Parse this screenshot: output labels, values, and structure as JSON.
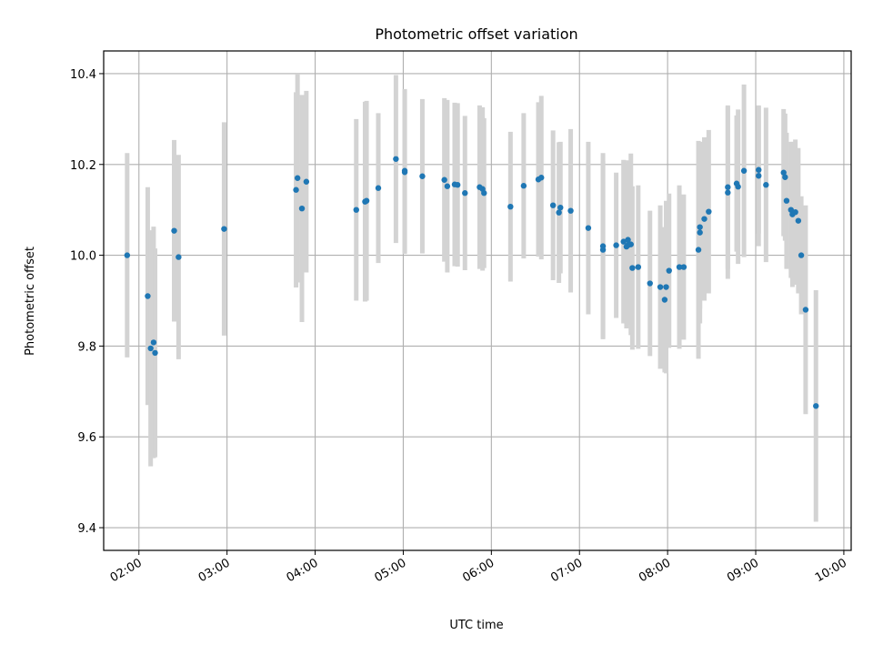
{
  "chart_data": {
    "type": "scatter",
    "title": "Photometric offset variation",
    "xlabel": "UTC time",
    "ylabel": "Photometric offset",
    "x_type": "time",
    "xlim": [
      "01:36",
      "10:05"
    ],
    "ylim": [
      9.35,
      10.45
    ],
    "grid": true,
    "x_ticks": [
      "02:00",
      "03:00",
      "04:00",
      "05:00",
      "06:00",
      "07:00",
      "08:00",
      "09:00",
      "10:00"
    ],
    "y_ticks": [
      9.4,
      9.6,
      9.8,
      10.0,
      10.2,
      10.4
    ],
    "y_tick_labels": [
      "9.4",
      "9.6",
      "9.8",
      "10.0",
      "10.2",
      "10.4"
    ],
    "colors": {
      "points": "#1f77b4",
      "error_bars": "#d3d3d3",
      "grid": "#b0b0b0"
    },
    "series": [
      {
        "x": [
          "01:52",
          "02:06",
          "02:08",
          "02:10",
          "02:11",
          "02:24",
          "02:27",
          "02:58",
          "03:47",
          "03:48",
          "03:51",
          "03:54",
          "04:28",
          "04:34",
          "04:35",
          "04:43",
          "04:55",
          "05:01",
          "05:01",
          "05:13",
          "05:28",
          "05:30",
          "05:35",
          "05:37",
          "05:42",
          "05:52",
          "05:54",
          "05:55",
          "06:13",
          "06:22",
          "06:32",
          "06:34",
          "06:42",
          "06:46",
          "06:47",
          "06:54",
          "07:06",
          "07:16",
          "07:16",
          "07:25",
          "07:30",
          "07:32",
          "07:33",
          "07:33",
          "07:35",
          "07:36",
          "07:40",
          "07:48",
          "07:55",
          "07:58",
          "07:59",
          "08:01",
          "08:08",
          "08:11",
          "08:21",
          "08:22",
          "08:22",
          "08:25",
          "08:28",
          "08:41",
          "08:41",
          "08:47",
          "08:48",
          "08:52",
          "09:02",
          "09:02",
          "09:07",
          "09:19",
          "09:20",
          "09:21",
          "09:24",
          "09:25",
          "09:27",
          "09:29",
          "09:31",
          "09:34",
          "09:41"
        ],
        "y": [
          10.0,
          9.91,
          9.795,
          9.808,
          9.785,
          10.054,
          9.996,
          10.058,
          10.144,
          10.17,
          10.103,
          10.162,
          10.1,
          10.118,
          10.12,
          10.148,
          10.212,
          10.186,
          10.183,
          10.174,
          10.166,
          10.152,
          10.156,
          10.155,
          10.137,
          10.15,
          10.146,
          10.137,
          10.107,
          10.153,
          10.167,
          10.171,
          10.11,
          10.094,
          10.105,
          10.098,
          10.06,
          10.012,
          10.02,
          10.022,
          10.03,
          10.019,
          10.034,
          10.022,
          10.024,
          9.972,
          9.974,
          9.938,
          9.93,
          9.902,
          9.93,
          9.966,
          9.974,
          9.974,
          10.012,
          10.05,
          10.062,
          10.08,
          10.096,
          10.15,
          10.138,
          10.158,
          10.151,
          10.186,
          10.188,
          10.175,
          10.155,
          10.182,
          10.172,
          10.12,
          10.1,
          10.09,
          10.095,
          10.076,
          10.0,
          9.88,
          9.668
        ],
        "yerr": [
          0.225,
          0.24,
          0.26,
          0.255,
          0.23,
          0.2,
          0.225,
          0.235,
          0.215,
          0.23,
          0.25,
          0.2,
          0.2,
          0.22,
          0.22,
          0.165,
          0.185,
          0.18,
          0.18,
          0.17,
          0.18,
          0.19,
          0.18,
          0.18,
          0.17,
          0.18,
          0.18,
          0.165,
          0.165,
          0.16,
          0.17,
          0.18,
          0.165,
          0.155,
          0.145,
          0.18,
          0.19,
          0.195,
          0.205,
          0.16,
          0.18,
          0.18,
          0.175,
          0.175,
          0.2,
          0.18,
          0.18,
          0.16,
          0.18,
          0.16,
          0.19,
          0.17,
          0.18,
          0.16,
          0.24,
          0.2,
          0.18,
          0.18,
          0.18,
          0.18,
          0.19,
          0.15,
          0.17,
          0.19,
          0.14,
          0.155,
          0.17,
          0.14,
          0.14,
          0.15,
          0.15,
          0.16,
          0.16,
          0.16,
          0.13,
          0.23,
          0.255
        ]
      }
    ]
  }
}
